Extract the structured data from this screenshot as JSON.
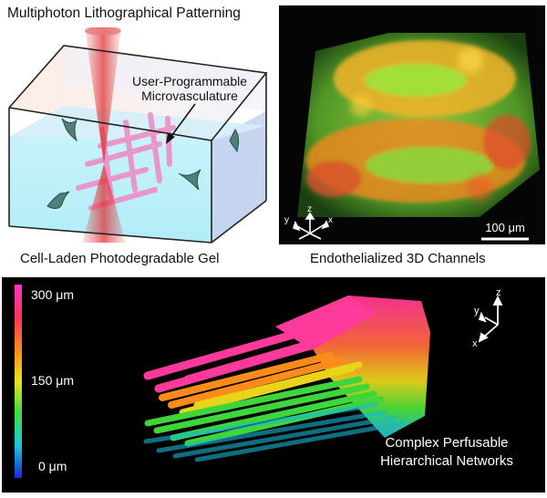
{
  "panel_a": {
    "title": "Multiphoton Lithographical Patterning",
    "annotation_line1": "User-Programmable",
    "annotation_line2": "Microvasculature",
    "caption": "Cell-Laden Photodegradable Gel"
  },
  "panel_b": {
    "caption": "Endothelialized 3D Channels",
    "scale_bar": "100 μm",
    "axis_x": "x",
    "axis_y": "y",
    "axis_z": "z"
  },
  "panel_c": {
    "colorbar_top": "300 μm",
    "colorbar_mid": "150 μm",
    "colorbar_bottom": "0 μm",
    "label_line1": "Complex Perfusable",
    "label_line2": "Hierarchical Networks",
    "axis_x": "x",
    "axis_y": "y",
    "axis_z": "z"
  }
}
